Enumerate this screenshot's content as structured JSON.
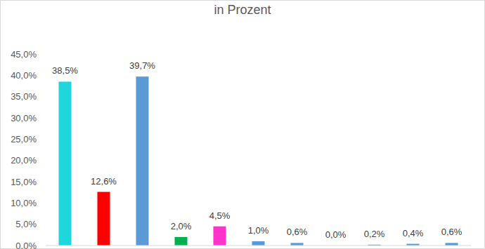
{
  "chart_data": {
    "type": "bar",
    "title": "in Prozent",
    "categories": [
      null,
      null,
      null,
      null,
      null,
      null,
      null,
      null,
      null,
      null,
      null
    ],
    "values": [
      38.5,
      12.6,
      39.7,
      2.0,
      4.5,
      1.0,
      0.6,
      0.0,
      0.2,
      0.4,
      0.6
    ],
    "value_labels": [
      "38,5%",
      "12,6%",
      "39,7%",
      "2,0%",
      "4,5%",
      "1,0%",
      "0,6%",
      "0,0%",
      "0,2%",
      "0,4%",
      "0,6%"
    ],
    "colors": [
      "#1fd6dc",
      "#ff0000",
      "#5b9bd5",
      "#00b050",
      "#ff33cc",
      "#5b9bd5",
      "#5b9bd5",
      "#5b9bd5",
      "#5b9bd5",
      "#5b9bd5",
      "#5b9bd5"
    ],
    "ylim": [
      0,
      45
    ],
    "yticks": [
      {
        "value": 0,
        "label": "0,0%"
      },
      {
        "value": 5,
        "label": "5,0%"
      },
      {
        "value": 10,
        "label": "10,0%"
      },
      {
        "value": 15,
        "label": "15,0%"
      },
      {
        "value": 20,
        "label": "20,0%"
      },
      {
        "value": 25,
        "label": "25,0%"
      },
      {
        "value": 30,
        "label": "30,0%"
      },
      {
        "value": 35,
        "label": "35,0%"
      },
      {
        "value": 40,
        "label": "40,0%"
      },
      {
        "value": 45,
        "label": "45,0%"
      }
    ],
    "grid": false,
    "data_labels": true
  }
}
